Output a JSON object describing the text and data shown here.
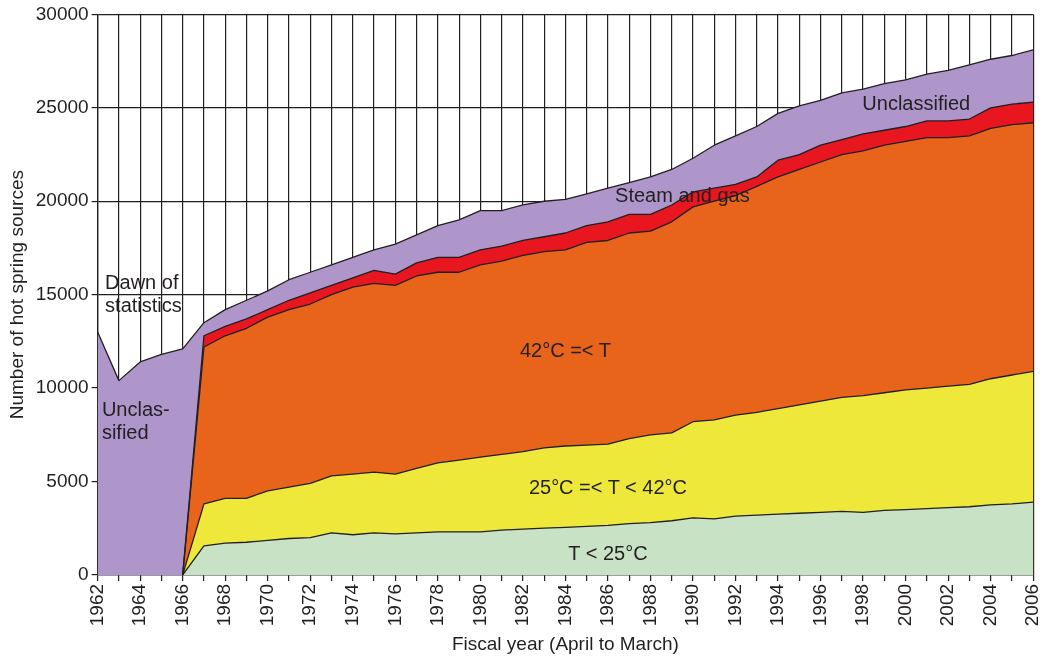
{
  "chart_data": {
    "type": "area",
    "stacked": true,
    "xlabel": "Fiscal year (April to March)",
    "ylabel": "Number of hot spring sources",
    "x": [
      1962,
      1963,
      1964,
      1965,
      1966,
      1967,
      1968,
      1969,
      1970,
      1971,
      1972,
      1973,
      1974,
      1975,
      1976,
      1977,
      1978,
      1979,
      1980,
      1981,
      1982,
      1983,
      1984,
      1985,
      1986,
      1987,
      1988,
      1989,
      1990,
      1991,
      1992,
      1993,
      1994,
      1995,
      1996,
      1997,
      1998,
      1999,
      2000,
      2001,
      2002,
      2003,
      2004,
      2005,
      2006
    ],
    "xlim": [
      1962,
      2006
    ],
    "xticks": [
      1962,
      {
        "value": 1963,
        "label": null
      },
      1964,
      {
        "value": 1965,
        "label": null
      },
      1966,
      {
        "value": 1967,
        "label": null
      },
      1968,
      {
        "value": 1969,
        "label": null
      },
      1970,
      {
        "value": 1971,
        "label": null
      },
      1972,
      {
        "value": 1973,
        "label": null
      },
      1974,
      {
        "value": 1975,
        "label": null
      },
      1976,
      {
        "value": 1977,
        "label": null
      },
      1978,
      {
        "value": 1979,
        "label": null
      },
      1980,
      {
        "value": 1981,
        "label": null
      },
      1982,
      {
        "value": 1983,
        "label": null
      },
      1984,
      {
        "value": 1985,
        "label": null
      },
      1986,
      {
        "value": 1987,
        "label": null
      },
      1988,
      {
        "value": 1989,
        "label": null
      },
      1990,
      {
        "value": 1991,
        "label": null
      },
      1992,
      {
        "value": 1993,
        "label": null
      },
      1994,
      {
        "value": 1995,
        "label": null
      },
      1996,
      {
        "value": 1997,
        "label": null
      },
      1998,
      {
        "value": 1999,
        "label": null
      },
      2000,
      {
        "value": 2001,
        "label": null
      },
      2002,
      {
        "value": 2003,
        "label": null
      },
      2004,
      {
        "value": 2005,
        "label": null
      },
      2006
    ],
    "ylim": [
      0,
      30000
    ],
    "yticks": [
      0,
      5000,
      10000,
      15000,
      20000,
      25000,
      30000
    ],
    "grid": true,
    "series": [
      {
        "name": "T < 25°C",
        "color": "#c8e2c6",
        "values": [
          null,
          null,
          null,
          null,
          0,
          1550,
          1700,
          1750,
          1850,
          1950,
          2000,
          2250,
          2150,
          2250,
          2200,
          2250,
          2300,
          2300,
          2300,
          2400,
          2450,
          2500,
          2550,
          2600,
          2650,
          2750,
          2800,
          2900,
          3050,
          3000,
          3150,
          3200,
          3250,
          3300,
          3350,
          3400,
          3350,
          3450,
          3500,
          3550,
          3600,
          3650,
          3750,
          3800,
          3900
        ]
      },
      {
        "name": "25°C =< T < 42°C",
        "color": "#ede83a",
        "values": [
          null,
          null,
          null,
          null,
          0,
          2250,
          2400,
          2350,
          2650,
          2750,
          2900,
          3050,
          3250,
          3250,
          3200,
          3450,
          3700,
          3850,
          4000,
          4050,
          4150,
          4300,
          4350,
          4350,
          4350,
          4550,
          4700,
          4700,
          5150,
          5300,
          5400,
          5500,
          5650,
          5800,
          5950,
          6100,
          6250,
          6300,
          6400,
          6450,
          6500,
          6550,
          6750,
          6900,
          7000
        ]
      },
      {
        "name": "42°C =< T",
        "color": "#e8641a",
        "values": [
          null,
          null,
          null,
          null,
          0,
          8400,
          8700,
          9100,
          9300,
          9500,
          9600,
          9700,
          10000,
          10100,
          10100,
          10300,
          10200,
          10050,
          10300,
          10350,
          10500,
          10500,
          10500,
          10850,
          10900,
          11000,
          10900,
          11300,
          11500,
          11700,
          11750,
          12100,
          12400,
          12600,
          12800,
          13000,
          13100,
          13250,
          13300,
          13400,
          13300,
          13300,
          13400,
          13400,
          13300
        ]
      },
      {
        "name": "Steam and gas",
        "color": "#e8161f",
        "values": [
          null,
          null,
          null,
          null,
          0,
          600,
          500,
          500,
          400,
          500,
          600,
          500,
          500,
          700,
          600,
          700,
          800,
          800,
          800,
          800,
          800,
          800,
          900,
          900,
          1000,
          1000,
          900,
          900,
          800,
          700,
          600,
          500,
          900,
          800,
          900,
          800,
          900,
          800,
          800,
          900,
          900,
          900,
          1100,
          1100,
          1100
        ]
      },
      {
        "name": "Unclassified",
        "color": "#ae96cb",
        "values": [
          13000,
          10400,
          11400,
          11800,
          12100,
          700,
          900,
          1000,
          1000,
          1100,
          1100,
          1100,
          1100,
          1100,
          1600,
          1500,
          1700,
          2000,
          2100,
          1900,
          1900,
          1900,
          1800,
          1700,
          1800,
          1700,
          2000,
          1900,
          1800,
          2300,
          2600,
          2700,
          2500,
          2600,
          2400,
          2500,
          2400,
          2500,
          2500,
          2500,
          2700,
          2900,
          2600,
          2600,
          2800
        ]
      }
    ],
    "annotations": [
      "Dawn of statistics",
      "Unclas-sified"
    ]
  }
}
